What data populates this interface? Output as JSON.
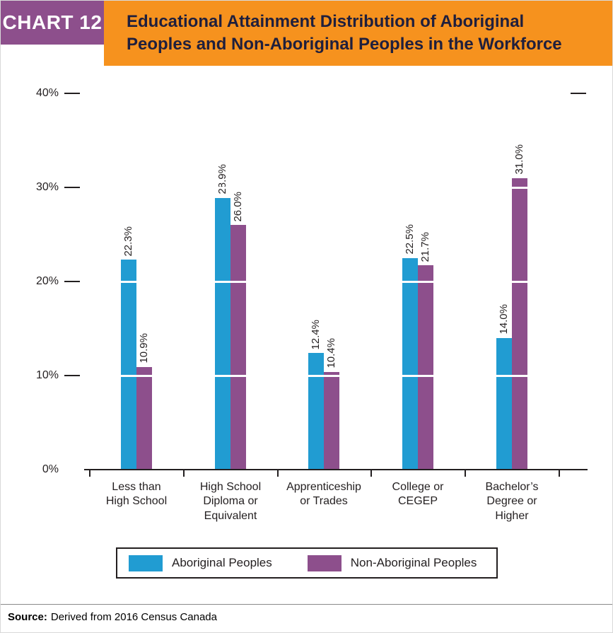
{
  "header": {
    "tag": "CHART 12",
    "title": "Educational Attainment Distribution of Aboriginal Peoples and Non-Aboriginal Peoples in the Workforce"
  },
  "legend": {
    "items": [
      {
        "label": "Aboriginal Peoples",
        "color": "#219cd2"
      },
      {
        "label": "Non-Aboriginal Peoples",
        "color": "#8d4f8c"
      }
    ]
  },
  "source": {
    "label": "Source:",
    "text": "Derived from 2016 Census Canada"
  },
  "colors": {
    "header_band": "#f6921e",
    "tag_background": "#8d4f8c",
    "axis": "#231f20"
  },
  "chart_data": {
    "type": "bar",
    "title": "Educational Attainment Distribution of Aboriginal Peoples and Non-Aboriginal Peoples in the Workforce",
    "categories": [
      "Less than High School",
      "High School Diploma or Equivalent",
      "Apprenticeship or Trades",
      "College or CEGEP",
      "Bachelor’s Degree or Higher"
    ],
    "category_labels": [
      [
        "Less than",
        "High School"
      ],
      [
        "High School",
        "Diploma or",
        "Equivalent"
      ],
      [
        "Apprenticeship",
        "or Trades"
      ],
      [
        "College or",
        "CEGEP"
      ],
      [
        "Bachelor’s",
        "Degree or",
        "Higher"
      ]
    ],
    "series": [
      {
        "name": "Aboriginal Peoples",
        "color": "#219cd2",
        "values": [
          22.3,
          28.9,
          12.4,
          22.5,
          14.0
        ]
      },
      {
        "name": "Non-Aboriginal Peoples",
        "color": "#8d4f8c",
        "values": [
          10.9,
          26.0,
          10.4,
          21.7,
          31.0
        ]
      }
    ],
    "value_label_format": "{value}%",
    "xlabel": "",
    "ylabel": "",
    "ylim": [
      0,
      40
    ],
    "ytick_values": [
      0,
      10,
      20,
      30,
      40
    ],
    "ytick_labels": [
      "0%",
      "10%",
      "20%",
      "30%",
      "40%"
    ],
    "grid": "white horizontal gridlines drawn over bars at 10/20/30",
    "legend_position": "bottom"
  }
}
